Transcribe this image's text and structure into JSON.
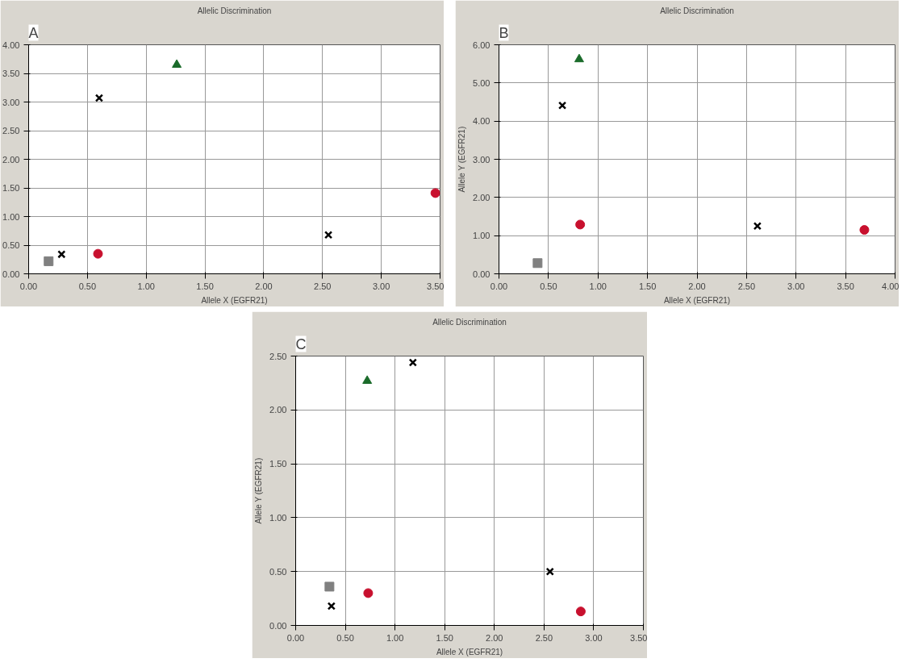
{
  "chart_data": [
    {
      "type": "scatter",
      "title": "A",
      "subtitle": "Allelic Discrimination",
      "xlabel": "Allele X (EGFR21)",
      "xlim": [
        0,
        3.5
      ],
      "ylim": [
        0,
        4
      ],
      "xticks": [
        {
          "value": 0,
          "label": "0.00"
        },
        {
          "value": 0.5,
          "label": "0.50"
        },
        {
          "value": 1,
          "label": "1.00"
        },
        {
          "value": 1.5,
          "label": "1.50"
        },
        {
          "value": 2,
          "label": "2.00"
        },
        {
          "value": 2.5,
          "label": "2.50"
        },
        {
          "value": 3,
          "label": "3.00"
        },
        {
          "value": 3.5,
          "label": "3.50"
        }
      ],
      "yticks": [
        {
          "value": 0,
          "label": "0.00"
        },
        {
          "value": 0.5,
          "label": "0.50"
        },
        {
          "value": 1,
          "label": "1.00"
        },
        {
          "value": 1.5,
          "label": "1.50"
        },
        {
          "value": 2,
          "label": "2.00"
        },
        {
          "value": 2.5,
          "label": "2.50"
        },
        {
          "value": 3,
          "label": "3.00"
        },
        {
          "value": 3.5,
          "label": "3.50"
        },
        {
          "value": 4,
          "label": "4.00"
        }
      ],
      "grid": true,
      "series": [
        {
          "color": "#808080",
          "marker": "square",
          "x": [
            0.17
          ],
          "values": [
            0.22
          ]
        },
        {
          "color": "#c8102e",
          "marker": "circle",
          "x": [
            0.59,
            3.46
          ],
          "values": [
            0.35,
            1.41
          ]
        },
        {
          "color": "#1a6b2a",
          "marker": "triangle",
          "x": [
            1.26
          ],
          "values": [
            3.65
          ]
        },
        {
          "color": "#000000",
          "marker": "cross",
          "x": [
            0.28,
            0.6,
            2.55
          ],
          "values": [
            0.34,
            3.07,
            0.68
          ]
        }
      ]
    },
    {
      "type": "scatter",
      "title": "B",
      "subtitle": "Allelic Discrimination",
      "xlabel": "Allele X (EGFR21)",
      "ylabel": "Allele Y (EGFR21)",
      "xlim": [
        0,
        4
      ],
      "ylim": [
        0,
        6
      ],
      "xticks": [
        {
          "value": 0,
          "label": "0.00"
        },
        {
          "value": 0.5,
          "label": "0.50"
        },
        {
          "value": 1,
          "label": "1.00"
        },
        {
          "value": 1.5,
          "label": "1.50"
        },
        {
          "value": 2,
          "label": "2.00"
        },
        {
          "value": 2.5,
          "label": "2.50"
        },
        {
          "value": 3,
          "label": "3.00"
        },
        {
          "value": 3.5,
          "label": "3.50"
        },
        {
          "value": 4,
          "label": "4.00"
        }
      ],
      "yticks": [
        {
          "value": 0,
          "label": "0.00"
        },
        {
          "value": 1,
          "label": "1.00"
        },
        {
          "value": 2,
          "label": "2.00"
        },
        {
          "value": 3,
          "label": "3.00"
        },
        {
          "value": 4,
          "label": "4.00"
        },
        {
          "value": 5,
          "label": "5.00"
        },
        {
          "value": 6,
          "label": "6.00"
        }
      ],
      "grid": true,
      "series": [
        {
          "color": "#808080",
          "marker": "square",
          "x": [
            0.39
          ],
          "values": [
            0.28
          ]
        },
        {
          "color": "#c8102e",
          "marker": "circle",
          "x": [
            0.82,
            3.69
          ],
          "values": [
            1.29,
            1.15
          ]
        },
        {
          "color": "#1a6b2a",
          "marker": "triangle",
          "x": [
            0.81
          ],
          "values": [
            5.62
          ]
        },
        {
          "color": "#000000",
          "marker": "cross",
          "x": [
            0.64,
            2.61
          ],
          "values": [
            4.41,
            1.25
          ]
        }
      ]
    },
    {
      "type": "scatter",
      "title": "C",
      "subtitle": "Allelic Discrimination",
      "xlabel": "Allele X (EGFR21)",
      "ylabel": "Allele Y (EGFR21)",
      "xlim": [
        0,
        3.5
      ],
      "ylim": [
        0,
        2.5
      ],
      "xticks": [
        {
          "value": 0,
          "label": "0.00"
        },
        {
          "value": 0.5,
          "label": "0.50"
        },
        {
          "value": 1,
          "label": "1.00"
        },
        {
          "value": 1.5,
          "label": "1.50"
        },
        {
          "value": 2,
          "label": "2.00"
        },
        {
          "value": 2.5,
          "label": "2.50"
        },
        {
          "value": 3,
          "label": "3.00"
        },
        {
          "value": 3.5,
          "label": "3.50"
        }
      ],
      "yticks": [
        {
          "value": 0,
          "label": "0.00"
        },
        {
          "value": 0.5,
          "label": "0.50"
        },
        {
          "value": 1,
          "label": "1.00"
        },
        {
          "value": 1.5,
          "label": "1.50"
        },
        {
          "value": 2,
          "label": "2.00"
        },
        {
          "value": 2.5,
          "label": "2.50"
        }
      ],
      "grid": true,
      "series": [
        {
          "color": "#808080",
          "marker": "square",
          "x": [
            0.34
          ],
          "values": [
            0.36
          ]
        },
        {
          "color": "#c8102e",
          "marker": "circle",
          "x": [
            0.73,
            2.87
          ],
          "values": [
            0.3,
            0.13
          ]
        },
        {
          "color": "#1a6b2a",
          "marker": "triangle",
          "x": [
            0.72
          ],
          "values": [
            2.27
          ]
        },
        {
          "color": "#000000",
          "marker": "cross",
          "x": [
            0.36,
            1.18,
            2.56
          ],
          "values": [
            0.18,
            2.44,
            0.5
          ]
        }
      ]
    }
  ]
}
